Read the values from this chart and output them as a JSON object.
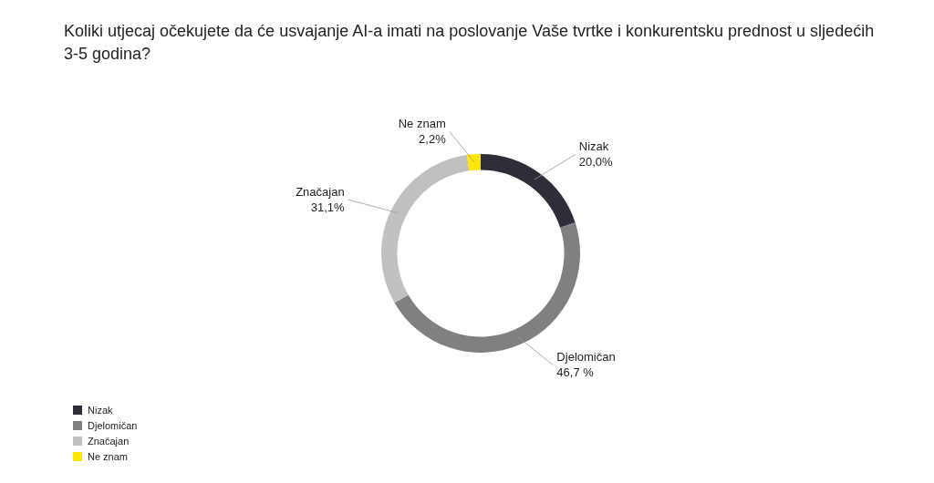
{
  "chart_data": {
    "type": "donut",
    "title": "Koliki utjecaj očekujete da će usvajanje AI-a imati na poslovanje Vaše tvrtke i konkurentsku prednost u sljedećih 3-5 godina?",
    "categories": [
      "Nizak",
      "Djelomičan",
      "Značajan",
      "Ne znam"
    ],
    "values": [
      20.0,
      46.7,
      31.1,
      2.2
    ],
    "colors": [
      "#2e2e38",
      "#808080",
      "#c0c0c0",
      "#ffe600"
    ],
    "value_labels": [
      "20,0%",
      "46,7 %",
      "31,1%",
      "2,2%"
    ],
    "legend": "bottom left"
  }
}
